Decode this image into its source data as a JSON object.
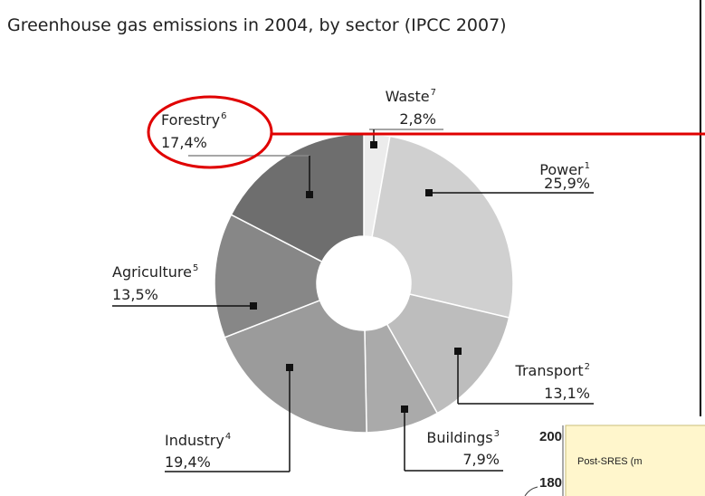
{
  "chart_data": {
    "type": "donut",
    "title": "Greenhouse gas emissions in 2004, by sector (IPCC 2007)",
    "categories": [
      "Waste",
      "Power",
      "Transport",
      "Buildings",
      "Industry",
      "Agriculture",
      "Forestry"
    ],
    "notes": [
      "7",
      "1",
      "2",
      "3",
      "4",
      "5",
      "6"
    ],
    "values": [
      2.8,
      25.9,
      13.1,
      7.9,
      19.4,
      13.5,
      17.4
    ],
    "value_labels": [
      "2,8%",
      "25,9%",
      "13,1%",
      "7,9%",
      "19,4%",
      "13,5%",
      "17,4%"
    ],
    "colors": [
      "#ececec",
      "#d0d0d0",
      "#bdbdbd",
      "#aaaaaa",
      "#9b9b9b",
      "#878787",
      "#6e6e6e"
    ]
  },
  "overlay": {
    "ticks": [
      200,
      180
    ],
    "legend_text": "Post-SRES (m"
  }
}
